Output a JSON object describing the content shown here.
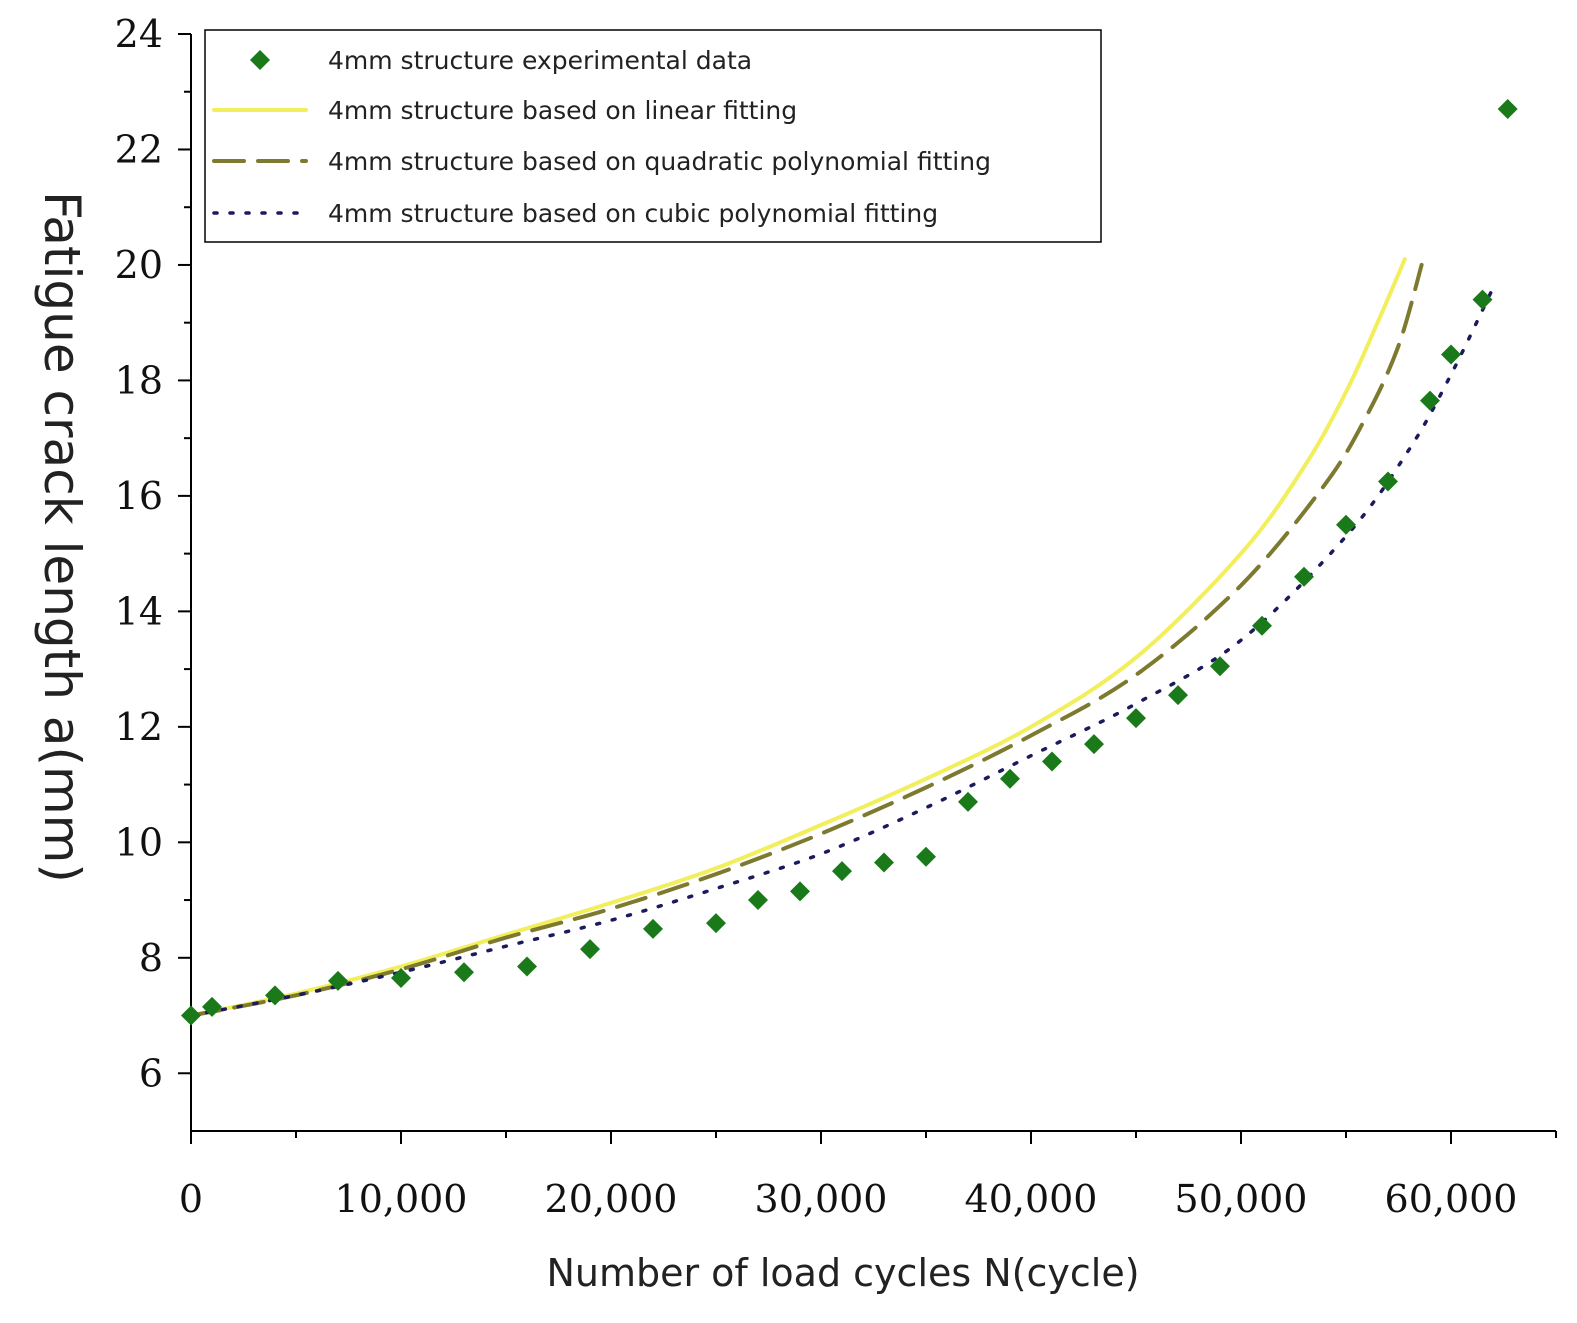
{
  "chart_data": {
    "type": "scatter",
    "title": "",
    "xlabel": "Number of load cycles N(cycle)",
    "ylabel": "Fatigue crack length a(mm)",
    "xlim": [
      0,
      65000
    ],
    "ylim": [
      5,
      24
    ],
    "xticks": [
      0,
      10000,
      20000,
      30000,
      40000,
      50000,
      60000
    ],
    "xtick_labels": [
      "0",
      "10,000",
      "20,000",
      "30,000",
      "40,000",
      "50,000",
      "60,000"
    ],
    "yticks": [
      6,
      8,
      10,
      12,
      14,
      16,
      18,
      20,
      22,
      24
    ],
    "ytick_labels": [
      "6",
      "8",
      "10",
      "12",
      "14",
      "16",
      "18",
      "20",
      "22",
      "24"
    ],
    "grid": false,
    "legend_position": "top-left",
    "series": [
      {
        "name": "4mm structure experimental data",
        "kind": "scatter",
        "marker": "diamond",
        "color": "#1a7a1a",
        "x": [
          0,
          1000,
          4000,
          7000,
          10000,
          13000,
          16000,
          19000,
          22000,
          25000,
          27000,
          29000,
          31000,
          33000,
          35000,
          37000,
          39000,
          41000,
          43000,
          45000,
          47000,
          49000,
          51000,
          53000,
          55000,
          57000,
          59000,
          60000,
          61500,
          62700
        ],
        "y": [
          7.0,
          7.15,
          7.35,
          7.6,
          7.65,
          7.75,
          7.85,
          8.15,
          8.5,
          8.6,
          9.0,
          9.15,
          9.5,
          9.65,
          9.75,
          10.7,
          11.1,
          11.4,
          11.7,
          12.15,
          12.55,
          13.05,
          13.75,
          14.6,
          15.5,
          16.25,
          17.65,
          18.45,
          19.4,
          22.7
        ]
      },
      {
        "name": "4mm structure based on linear fitting",
        "kind": "line",
        "dash": "solid",
        "color": "#f2ee5c",
        "x": [
          0,
          5000,
          10000,
          15000,
          20000,
          25000,
          30000,
          35000,
          40000,
          45000,
          50000,
          53000,
          55000,
          56500,
          57800
        ],
        "y": [
          7.0,
          7.38,
          7.85,
          8.4,
          8.95,
          9.55,
          10.3,
          11.1,
          12.0,
          13.2,
          15.0,
          16.5,
          17.8,
          19.0,
          20.1
        ]
      },
      {
        "name": "4mm structure based on quadratic polynomial fitting",
        "kind": "line",
        "dash": "dashed",
        "color": "#7d7a30",
        "x": [
          0,
          5000,
          10000,
          15000,
          20000,
          25000,
          30000,
          35000,
          40000,
          45000,
          50000,
          54000,
          56000,
          57500,
          58600
        ],
        "y": [
          7.0,
          7.35,
          7.8,
          8.35,
          8.85,
          9.45,
          10.15,
          10.95,
          11.85,
          12.9,
          14.45,
          16.2,
          17.4,
          18.6,
          20.0
        ]
      },
      {
        "name": "4mm structure based on cubic polynomial fitting",
        "kind": "line",
        "dash": "dotted",
        "color": "#1a1a5c",
        "x": [
          0,
          5000,
          10000,
          15000,
          20000,
          25000,
          30000,
          35000,
          40000,
          45000,
          50000,
          55000,
          58000,
          60000,
          62000
        ],
        "y": [
          7.0,
          7.35,
          7.75,
          8.2,
          8.65,
          9.2,
          9.8,
          10.6,
          11.5,
          12.4,
          13.5,
          15.3,
          16.8,
          18.1,
          19.6
        ]
      }
    ]
  }
}
